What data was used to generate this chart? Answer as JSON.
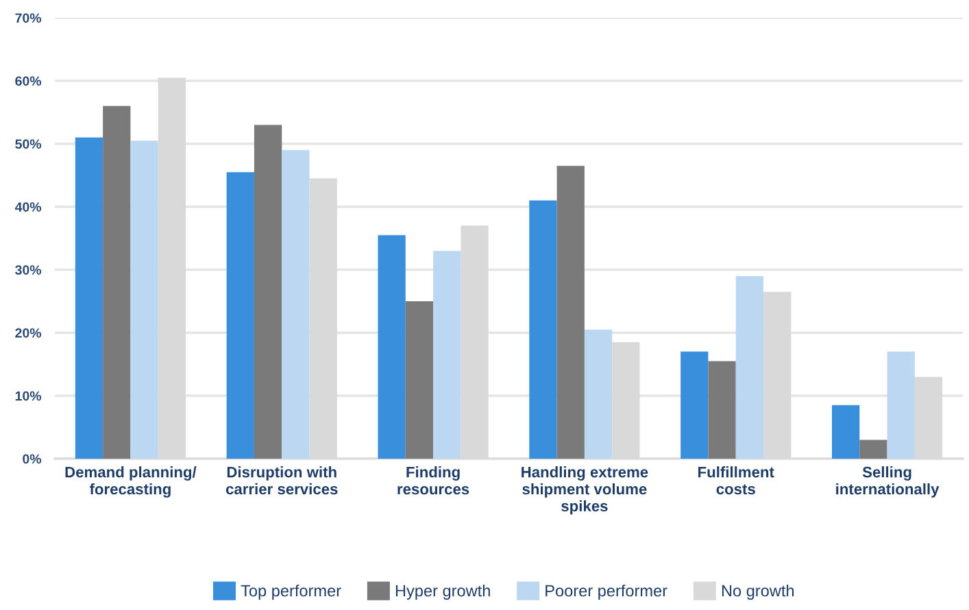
{
  "chart_data": {
    "type": "bar",
    "categories": [
      "Demand planning/\nforecasting",
      "Disruption with\ncarrier services",
      "Finding\nresources",
      "Handling extreme\nshipment volume\nspikes",
      "Fulfillment\ncosts",
      "Selling\ninternationally"
    ],
    "series": [
      {
        "name": "Top performer",
        "color": "#3a8fdd",
        "values": [
          51,
          45.5,
          35.5,
          41,
          17,
          8.5
        ]
      },
      {
        "name": "Hyper growth",
        "color": "#7a7a7a",
        "values": [
          56,
          53,
          25,
          46.5,
          15.5,
          3
        ]
      },
      {
        "name": "Poorer performer",
        "color": "#bcd7f1",
        "values": [
          50.5,
          49,
          33,
          20.5,
          29,
          17
        ]
      },
      {
        "name": "No growth",
        "color": "#d9d9d9",
        "values": [
          60.5,
          44.5,
          37,
          18.5,
          26.5,
          13
        ]
      }
    ],
    "ylim": [
      0,
      70
    ],
    "yticks": [
      {
        "value": 0,
        "label": "0%"
      },
      {
        "value": 10,
        "label": "10%"
      },
      {
        "value": 20,
        "label": "20%"
      },
      {
        "value": 30,
        "label": "30%"
      },
      {
        "value": 40,
        "label": "40%"
      },
      {
        "value": 50,
        "label": "50%"
      },
      {
        "value": 60,
        "label": "60%"
      },
      {
        "value": 70,
        "label": "70%"
      }
    ],
    "grid": "y",
    "legend": "bottom"
  }
}
